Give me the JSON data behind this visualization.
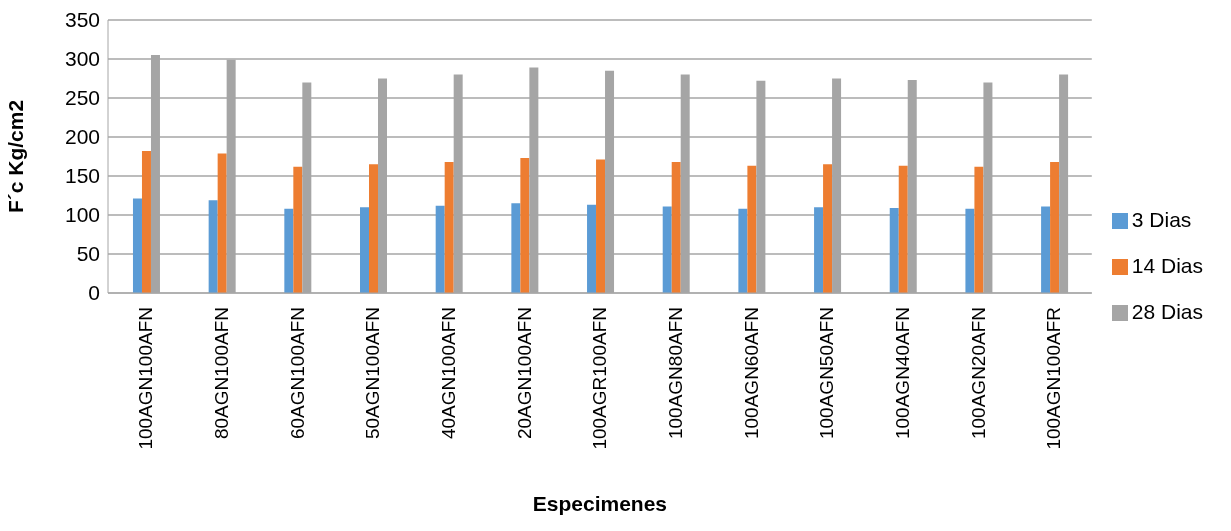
{
  "chart_data": {
    "type": "bar",
    "xlabel": "Especimenes",
    "ylabel": "F´c Kg/cm2",
    "categories": [
      "100AGN100AFN",
      "80AGN100AFN",
      "60AGN100AFN",
      "50AGN100AFN",
      "40AGN100AFN",
      "20AGN100AFN",
      "100AGR100AFN",
      "100AGN80AFN",
      "100AGN60AFN",
      "100AGN50AFN",
      "100AGN40AFN",
      "100AGN20AFN",
      "100AGN100AFR"
    ],
    "series": [
      {
        "name": "3 Dias",
        "color": "#5b9bd5",
        "values": [
          121,
          119,
          108,
          110,
          112,
          115,
          113,
          111,
          108,
          110,
          109,
          108,
          111
        ]
      },
      {
        "name": "14 Dias",
        "color": "#ed7d31",
        "values": [
          182,
          179,
          162,
          165,
          168,
          173,
          171,
          168,
          163,
          165,
          163,
          162,
          168
        ]
      },
      {
        "name": "28 Dias",
        "color": "#a5a5a5",
        "values": [
          305,
          299,
          270,
          275,
          280,
          289,
          285,
          280,
          272,
          275,
          273,
          270,
          280
        ]
      }
    ],
    "ylim": [
      0,
      350
    ],
    "yticks": [
      0,
      50,
      100,
      150,
      200,
      250,
      300,
      350
    ],
    "grid": "y",
    "legend": "right"
  }
}
